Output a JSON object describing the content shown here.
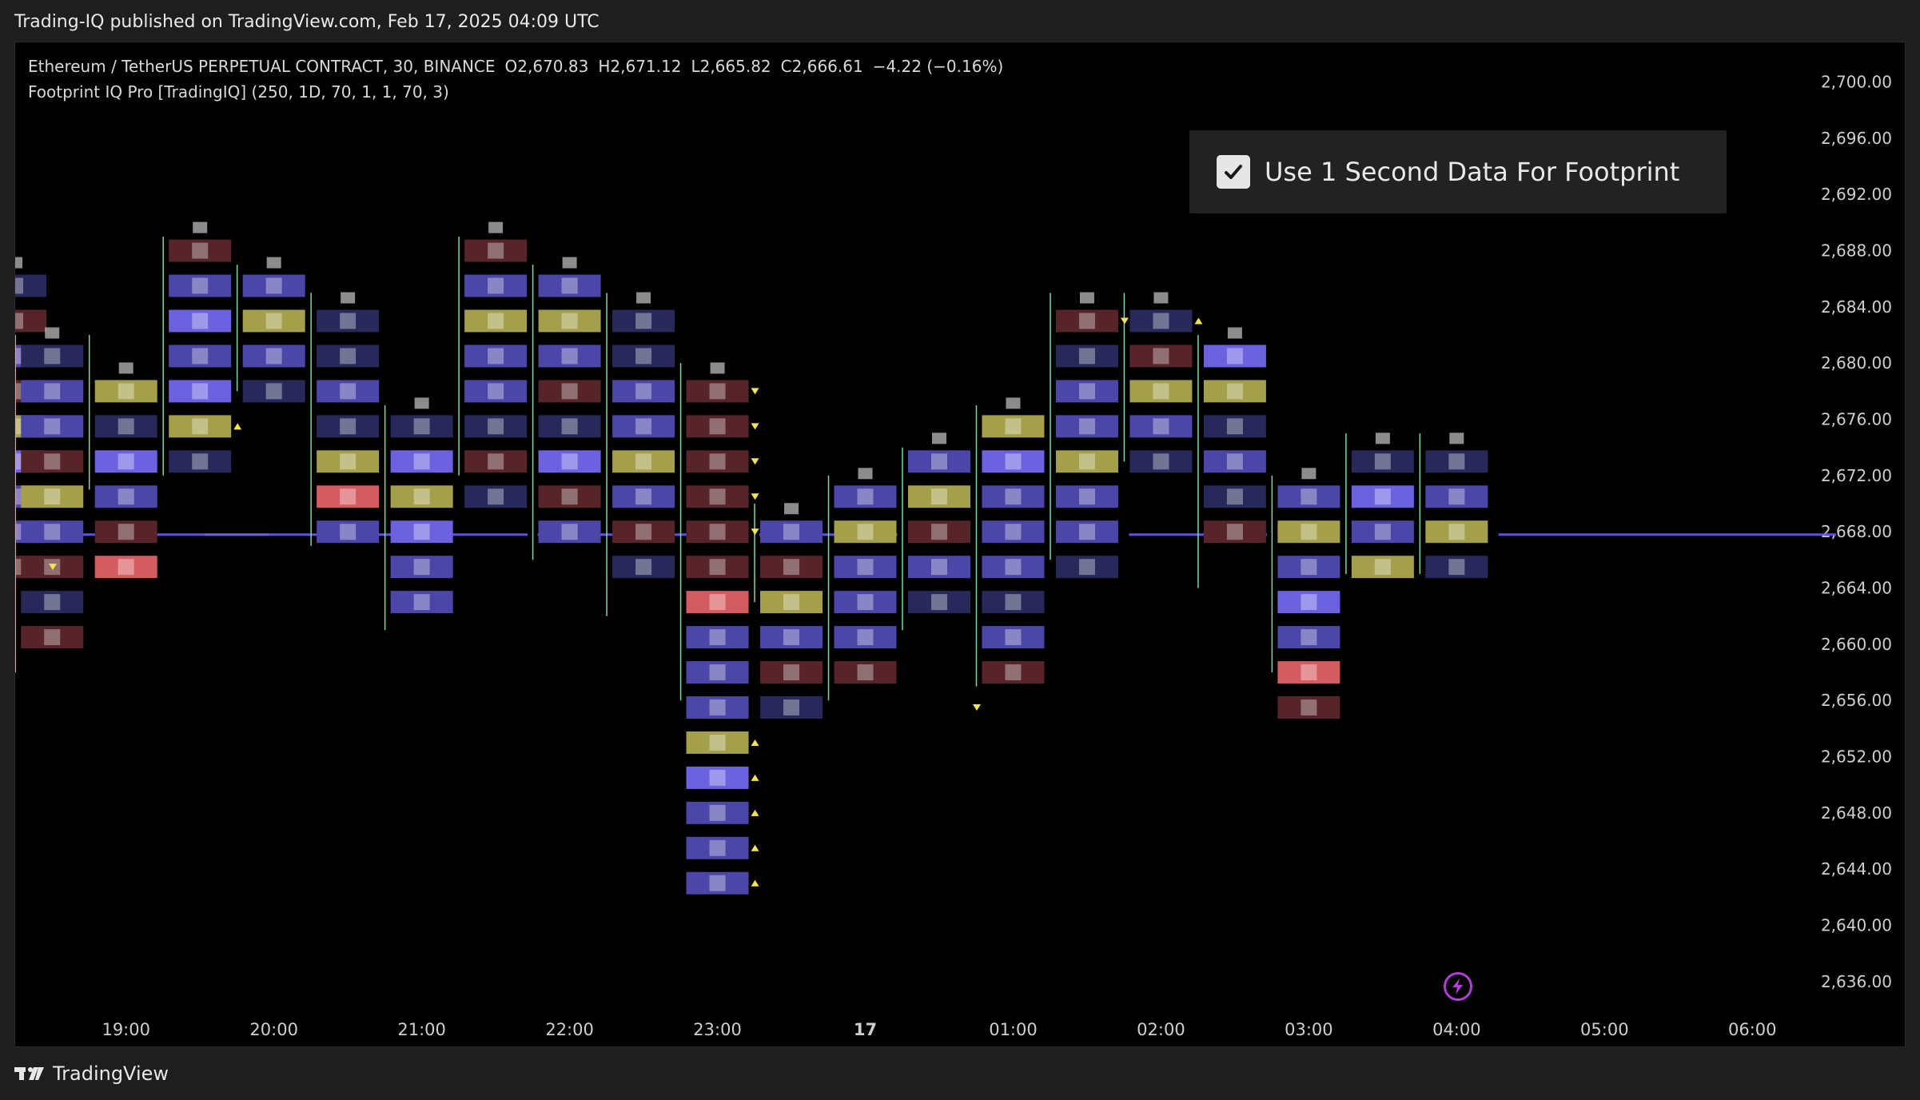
{
  "banner": {
    "text": "Trading-IQ published on TradingView.com, Feb 17, 2025 04:09 UTC"
  },
  "legend": {
    "symbol": "Ethereum / TetherUS PERPETUAL CONTRACT, 30, BINANCE",
    "open": "O2,670.83",
    "high": "H2,671.12",
    "low": "L2,665.82",
    "close": "C2,666.61",
    "change": "−4.22 (−0.16%)",
    "indicator": "Footprint IQ Pro [TradingIQ] (250, 1D, 70, 1, 1, 70, 3)"
  },
  "settings": {
    "checkbox_checked": true,
    "label": "Use 1 Second Data For Footprint"
  },
  "footer": {
    "brand": "TradingView"
  },
  "icons": {
    "flash": "flash-icon",
    "check": "check-icon",
    "logo": "tradingview-logo-icon"
  },
  "colors": {
    "background": "#000000",
    "cell_dark_blue": "#29285a",
    "cell_mid_blue": "#4b46a8",
    "cell_bright_blue": "#6c62e0",
    "cell_yellow": "#a39f4a",
    "cell_dark_red": "#57242a",
    "cell_bright_red": "#d45c61",
    "wick_green": "#7fd8a0",
    "poc_line": "#6a5cff",
    "marker_yellow": "#f5e44a"
  },
  "chart_data": {
    "type": "footprint",
    "y_axis": {
      "ylim": [
        2634,
        2701
      ],
      "ticks": [
        "2,700.00",
        "2,696.00",
        "2,692.00",
        "2,688.00",
        "2,684.00",
        "2,680.00",
        "2,676.00",
        "2,672.00",
        "2,668.00",
        "2,664.00",
        "2,660.00",
        "2,656.00",
        "2,652.00",
        "2,648.00",
        "2,644.00",
        "2,640.00",
        "2,636.00"
      ],
      "tick_values": [
        2700,
        2696,
        2692,
        2688,
        2684,
        2680,
        2676,
        2672,
        2668,
        2664,
        2660,
        2656,
        2652,
        2648,
        2644,
        2640,
        2636
      ]
    },
    "x_axis": {
      "ticks": [
        "19:00",
        "20:00",
        "21:00",
        "22:00",
        "23:00",
        "17",
        "01:00",
        "02:00",
        "03:00",
        "04:00",
        "05:00",
        "06:00"
      ],
      "tick_hours": [
        19,
        20,
        21,
        22,
        23,
        24,
        25,
        26,
        27,
        28,
        29,
        30
      ],
      "bold_tick": "17",
      "xlim_hours": [
        18.25,
        30.35
      ]
    },
    "price_step": 2.5,
    "poc_segments": [
      {
        "from": 18.25,
        "to": 19.75,
        "price": 2667.8
      },
      {
        "from": 19.75,
        "to": 20.75,
        "price": 2667.8
      },
      {
        "from": 21.0,
        "to": 21.5,
        "price": 2667.8
      },
      {
        "from": 22.0,
        "to": 22.75,
        "price": 2667.8
      },
      {
        "from": 23.5,
        "to": 24.0,
        "price": 2667.8
      },
      {
        "from": 26.0,
        "to": 26.5,
        "price": 2667.8
      },
      {
        "from": 28.5,
        "to": 30.35,
        "price": 2667.8
      }
    ],
    "candles": [
      {
        "time": 18.25,
        "cells": [
          "db",
          "dr",
          "mb",
          "dr",
          "y",
          "bb",
          "mb",
          "mb",
          "dr"
        ],
        "top": 2685.5,
        "wick": [
          2669,
          2690
        ]
      },
      {
        "time": 18.5,
        "cells": [
          "db",
          "mb",
          "mb",
          "dr",
          "y",
          "mb",
          "dr",
          "db",
          "dr"
        ],
        "top": 2680.5,
        "wick": [
          2658,
          2682
        ]
      },
      {
        "time": 19.0,
        "cells": [
          "y",
          "db",
          "bb",
          "mb",
          "dr",
          "br"
        ],
        "top": 2678,
        "wick": [
          2671,
          2682
        ]
      },
      {
        "time": 19.5,
        "cells": [
          "dr",
          "mb",
          "bb",
          "mb",
          "bb",
          "y",
          "db"
        ],
        "top": 2688,
        "wick": [
          2672,
          2689
        ]
      },
      {
        "time": 20.0,
        "cells": [
          "mb",
          "y",
          "mb",
          "db"
        ],
        "top": 2685.5,
        "wick": [
          2678,
          2687
        ]
      },
      {
        "time": 20.5,
        "cells": [
          "db",
          "db",
          "mb",
          "db",
          "y",
          "br",
          "mb"
        ],
        "top": 2683,
        "wick": [
          2667,
          2685
        ]
      },
      {
        "time": 21.0,
        "cells": [
          "db",
          "bb",
          "y",
          "bb",
          "mb",
          "mb"
        ],
        "top": 2675.5,
        "wick": [
          2661,
          2677
        ]
      },
      {
        "time": 21.5,
        "cells": [
          "dr",
          "mb",
          "y",
          "mb",
          "mb",
          "db",
          "dr",
          "db"
        ],
        "top": 2688,
        "wick": [
          2672,
          2689
        ]
      },
      {
        "time": 22.0,
        "cells": [
          "mb",
          "y",
          "mb",
          "dr",
          "db",
          "bb",
          "dr",
          "mb"
        ],
        "top": 2685.5,
        "wick": [
          2666,
          2687
        ]
      },
      {
        "time": 22.5,
        "cells": [
          "db",
          "db",
          "mb",
          "mb",
          "y",
          "mb",
          "dr",
          "db"
        ],
        "top": 2683,
        "wick": [
          2662,
          2685
        ]
      },
      {
        "time": 23.0,
        "cells": [
          "dr",
          "dr",
          "dr",
          "dr",
          "dr",
          "dr",
          "br",
          "mb",
          "mb",
          "mb",
          "y",
          "bb",
          "mb",
          "mb",
          "mb"
        ],
        "top": 2678,
        "wick": [
          2656,
          2680
        ]
      },
      {
        "time": 23.5,
        "cells": [
          "mb",
          "dr",
          "y",
          "mb",
          "dr",
          "db"
        ],
        "top": 2668,
        "wick": [
          2663,
          2670
        ]
      },
      {
        "time": 24.0,
        "cells": [
          "mb",
          "y",
          "mb",
          "mb",
          "mb",
          "dr"
        ],
        "top": 2670.5,
        "wick": [
          2656,
          2672
        ]
      },
      {
        "time": 24.5,
        "cells": [
          "mb",
          "y",
          "dr",
          "mb",
          "db"
        ],
        "top": 2673,
        "wick": [
          2661,
          2674
        ]
      },
      {
        "time": 25.0,
        "cells": [
          "y",
          "bb",
          "mb",
          "mb",
          "mb",
          "db",
          "mb",
          "dr"
        ],
        "top": 2675.5,
        "wick": [
          2657,
          2677
        ]
      },
      {
        "time": 25.5,
        "cells": [
          "dr",
          "db",
          "mb",
          "mb",
          "y",
          "mb",
          "mb",
          "db"
        ],
        "top": 2683,
        "wick": [
          2666,
          2685
        ]
      },
      {
        "time": 26.0,
        "cells": [
          "db",
          "dr",
          "y",
          "mb",
          "db"
        ],
        "top": 2683,
        "wick": [
          2673,
          2685
        ]
      },
      {
        "time": 26.5,
        "cells": [
          "bb",
          "y",
          "db",
          "mb",
          "db",
          "dr"
        ],
        "top": 2680.5,
        "wick": [
          2664,
          2682
        ]
      },
      {
        "time": 27.0,
        "cells": [
          "mb",
          "y",
          "mb",
          "bb",
          "mb",
          "br",
          "dr"
        ],
        "top": 2670.5,
        "wick": [
          2658,
          2672
        ]
      },
      {
        "time": 27.5,
        "cells": [
          "db",
          "bb",
          "mb",
          "y"
        ],
        "top": 2673,
        "wick": [
          2665,
          2675
        ]
      },
      {
        "time": 28.0,
        "cells": [
          "db",
          "mb",
          "y",
          "db"
        ],
        "top": 2673,
        "wick": [
          2665,
          2675
        ]
      }
    ],
    "markers": [
      {
        "time": 18.25,
        "price": 2665.5,
        "dir": "down"
      },
      {
        "time": 19.5,
        "price": 2675.5,
        "dir": "up"
      },
      {
        "time": 23.0,
        "price": 2678,
        "dir": "down"
      },
      {
        "time": 23.0,
        "price": 2675.5,
        "dir": "down"
      },
      {
        "time": 23.0,
        "price": 2673,
        "dir": "down"
      },
      {
        "time": 23.0,
        "price": 2670.5,
        "dir": "down"
      },
      {
        "time": 23.0,
        "price": 2668,
        "dir": "down"
      },
      {
        "time": 23.0,
        "price": 2653,
        "dir": "up"
      },
      {
        "time": 23.0,
        "price": 2650.5,
        "dir": "up"
      },
      {
        "time": 23.0,
        "price": 2648,
        "dir": "up"
      },
      {
        "time": 23.0,
        "price": 2645.5,
        "dir": "up"
      },
      {
        "time": 23.0,
        "price": 2643,
        "dir": "up"
      },
      {
        "time": 24.5,
        "price": 2655.5,
        "dir": "down"
      },
      {
        "time": 25.5,
        "price": 2683,
        "dir": "down"
      },
      {
        "time": 26.0,
        "price": 2683,
        "dir": "up"
      }
    ]
  }
}
